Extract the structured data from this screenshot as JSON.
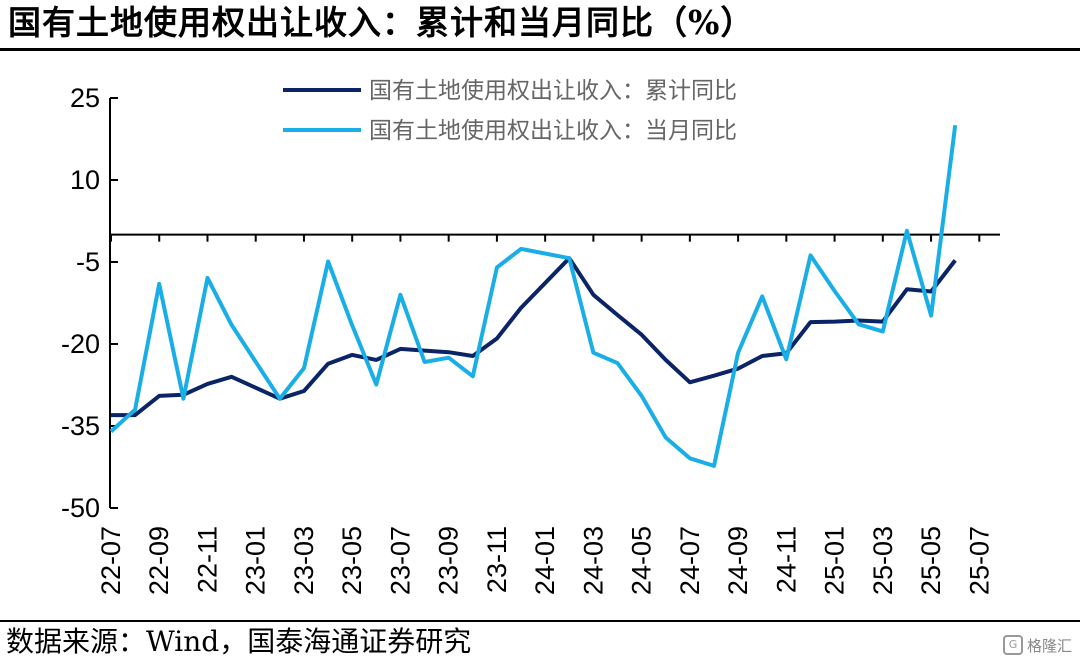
{
  "title": "国有土地使用权出让收入：累计和当月同比（%）",
  "source": "数据来源：Wind，国泰海通证券研究",
  "watermark": "格隆汇",
  "chart_data": {
    "type": "line",
    "title": "国有土地使用权出让收入：累计和当月同比（%）",
    "ylim": [
      -50,
      25
    ],
    "yticks": [
      25,
      10,
      -5,
      -20,
      -35,
      -50
    ],
    "x": [
      "22-07",
      "22-08",
      "22-09",
      "22-10",
      "22-11",
      "22-12",
      "23-01",
      "23-02",
      "23-03",
      "23-04",
      "23-05",
      "23-06",
      "23-07",
      "23-08",
      "23-09",
      "23-10",
      "23-11",
      "23-12",
      "24-01",
      "24-02",
      "24-03",
      "24-04",
      "24-05",
      "24-06",
      "24-07",
      "24-08",
      "24-09",
      "24-10",
      "24-11",
      "24-12",
      "25-01",
      "25-02",
      "25-03",
      "25-04",
      "25-05",
      "25-06"
    ],
    "xticks": [
      "22-07",
      "22-09",
      "22-11",
      "23-01",
      "23-03",
      "23-05",
      "23-07",
      "23-09",
      "23-11",
      "24-01",
      "24-03",
      "24-05",
      "24-07",
      "24-09",
      "24-11",
      "25-01",
      "25-03",
      "25-05",
      "25-07"
    ],
    "grid": false,
    "legend_position": "top-right",
    "series": [
      {
        "name": "国有土地使用权出让收入：累计同比",
        "color": "#0b2466",
        "values": [
          -33.0,
          -33.0,
          -29.5,
          -29.3,
          -27.3,
          -26.0,
          null,
          -30.0,
          -28.6,
          -23.6,
          -22.0,
          -22.9,
          -20.9,
          -21.2,
          -21.5,
          -22.2,
          -19.0,
          -13.4,
          null,
          -4.3,
          -11.0,
          -14.7,
          -18.3,
          -22.9,
          -27.0,
          -25.8,
          -24.5,
          -22.2,
          -21.7,
          -16.0,
          -15.9,
          -15.7,
          -15.9,
          -10.0,
          -10.4,
          -4.7
        ]
      },
      {
        "name": "国有土地使用权出让收入：当月同比",
        "color": "#1aaee6",
        "values": [
          -36.0,
          -32.0,
          -9.0,
          -30.0,
          -7.9,
          -16.5,
          null,
          -30.0,
          -24.4,
          -4.9,
          -16.6,
          -27.4,
          -11.0,
          -23.3,
          -22.5,
          -25.9,
          -6.0,
          -2.6,
          null,
          -4.3,
          -21.6,
          -23.5,
          -29.5,
          -37.1,
          -40.9,
          -42.3,
          -21.6,
          -11.3,
          -22.8,
          -3.8,
          -10.3,
          -16.4,
          -17.7,
          0.7,
          -14.8,
          20.0
        ]
      }
    ]
  }
}
